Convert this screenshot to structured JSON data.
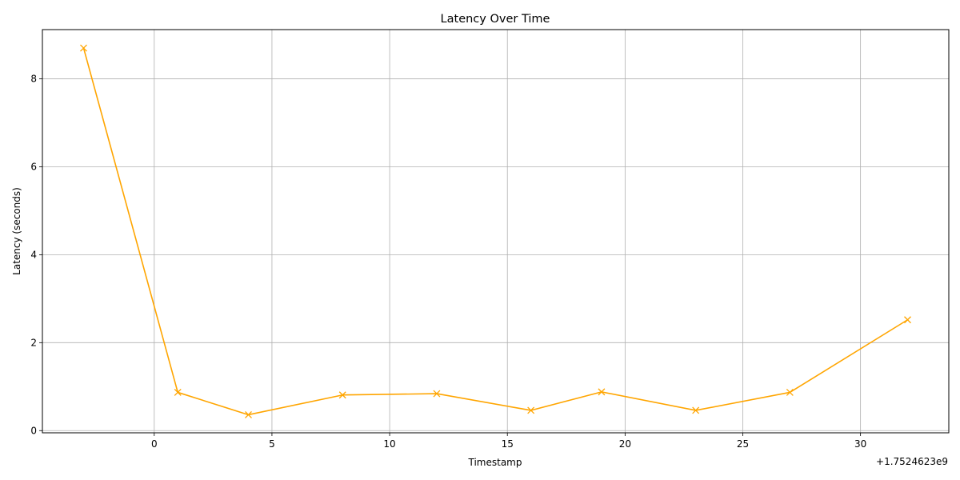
{
  "chart_data": {
    "type": "line",
    "title": "Latency Over Time",
    "xlabel": "Timestamp",
    "ylabel": "Latency (seconds)",
    "x_offset_label": "+1.7524623e9",
    "x_ticks": [
      0,
      5,
      10,
      15,
      20,
      25,
      30
    ],
    "y_ticks": [
      0,
      2,
      4,
      6,
      8
    ],
    "xlim": [
      -4.75,
      33.75
    ],
    "ylim": [
      -0.05,
      9.12
    ],
    "grid": true,
    "colors": {
      "line": "#ffa500",
      "grid": "#b0b0b0",
      "axis": "#000000"
    },
    "marker": "x",
    "series": [
      {
        "x": [
          -3,
          1,
          4,
          8,
          12,
          16,
          19,
          23,
          27,
          32
        ],
        "y": [
          8.7,
          0.87,
          0.36,
          0.81,
          0.84,
          0.46,
          0.88,
          0.46,
          0.87,
          2.52
        ]
      }
    ]
  }
}
